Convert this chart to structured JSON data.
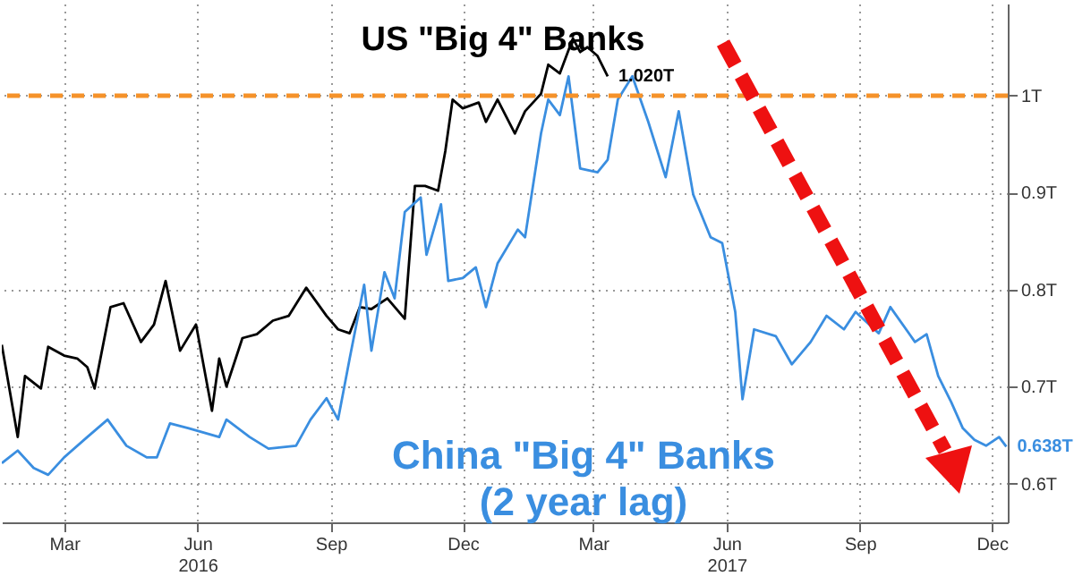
{
  "chart_data": {
    "type": "line",
    "xlim": [
      "2016-02-01",
      "2017-12-26"
    ],
    "xticks": [
      {
        "value": "2016-03-15",
        "label": "Mar"
      },
      {
        "value": "2016-06-15",
        "label": "Jun\n2016"
      },
      {
        "value": "2016-09-15",
        "label": "Sep"
      },
      {
        "value": "2016-12-15",
        "label": "Dec"
      },
      {
        "value": "2017-03-15",
        "label": "Mar"
      },
      {
        "value": "2017-06-15",
        "label": "Jun\n2017"
      },
      {
        "value": "2017-09-15",
        "label": "Sep"
      },
      {
        "value": "2017-12-15",
        "label": "Dec"
      }
    ],
    "ylim": [
      0.56,
      1.095
    ],
    "yticks": [
      {
        "value": 0.6,
        "label": "0.6T"
      },
      {
        "value": 0.7,
        "label": "0.7T"
      },
      {
        "value": 0.8,
        "label": "0.8T"
      },
      {
        "value": 0.9,
        "label": "0.9T"
      },
      {
        "value": 1,
        "label": "1T"
      }
    ],
    "grid": true,
    "ref_lines": [
      {
        "axis": "y",
        "value": 1,
        "color": "#f5922a",
        "line_style": "dashed"
      }
    ],
    "series": [
      {
        "name": "US \"Big 4\" Banks",
        "color": "#000000",
        "x": [
          "2016-02-01",
          "2016-02-12",
          "2016-02-17",
          "2016-02-28",
          "2016-03-04",
          "2016-03-15",
          "2016-03-24",
          "2016-03-31",
          "2016-04-05",
          "2016-04-16",
          "2016-04-25",
          "2016-05-07",
          "2016-05-16",
          "2016-05-24",
          "2016-06-03",
          "2016-06-14",
          "2016-06-25",
          "2016-06-30",
          "2016-07-05",
          "2016-07-16",
          "2016-07-26",
          "2016-08-06",
          "2016-08-17",
          "2016-08-29",
          "2016-09-12",
          "2016-09-20",
          "2016-09-28",
          "2016-10-05",
          "2016-10-13",
          "2016-10-24",
          "2016-11-05",
          "2016-11-12",
          "2016-11-19",
          "2016-11-28",
          "2016-12-03",
          "2016-12-08",
          "2016-12-15",
          "2016-12-26",
          "2016-12-31",
          "2017-01-08",
          "2017-01-20",
          "2017-01-27",
          "2017-02-07",
          "2017-02-12",
          "2017-02-20",
          "2017-03-01",
          "2017-03-06",
          "2017-03-11",
          "2017-03-18",
          "2017-03-25"
        ],
        "values": [
          0.743,
          0.648,
          0.711,
          0.698,
          0.741,
          0.732,
          0.729,
          0.72,
          0.698,
          0.782,
          0.786,
          0.746,
          0.764,
          0.809,
          0.737,
          0.764,
          0.675,
          0.729,
          0.7,
          0.75,
          0.754,
          0.768,
          0.773,
          0.802,
          0.773,
          0.759,
          0.755,
          0.782,
          0.78,
          0.791,
          0.77,
          0.907,
          0.907,
          0.902,
          0.943,
          0.996,
          0.987,
          0.993,
          0.973,
          0.996,
          0.961,
          0.984,
          1.002,
          1.032,
          1.023,
          1.059,
          1.045,
          1.05,
          1.041,
          1.02
        ],
        "value_labels": [
          null,
          null,
          null,
          null,
          null,
          null,
          null,
          null,
          null,
          null,
          null,
          null,
          null,
          null,
          null,
          null,
          null,
          null,
          null,
          null,
          null,
          null,
          null,
          null,
          null,
          null,
          null,
          null,
          null,
          null,
          null,
          null,
          null,
          null,
          null,
          null,
          null,
          null,
          null,
          null,
          null,
          null,
          null,
          null,
          null,
          null,
          null,
          null,
          null,
          "1.020T"
        ]
      },
      {
        "name": "China \"Big 4\" Banks\n(2 year lag)",
        "color": "#3a8ee0",
        "x": [
          "2016-02-01",
          "2016-02-12",
          "2016-02-23",
          "2016-03-04",
          "2016-03-15",
          "2016-03-31",
          "2016-04-14",
          "2016-04-27",
          "2016-05-11",
          "2016-05-18",
          "2016-05-27",
          "2016-06-09",
          "2016-06-30",
          "2016-07-05",
          "2016-07-21",
          "2016-08-03",
          "2016-08-22",
          "2016-09-01",
          "2016-09-12",
          "2016-09-20",
          "2016-09-28",
          "2016-10-08",
          "2016-10-13",
          "2016-10-22",
          "2016-10-29",
          "2016-11-05",
          "2016-11-16",
          "2016-11-20",
          "2016-11-30",
          "2016-12-05",
          "2016-12-15",
          "2016-12-24",
          "2016-12-31",
          "2017-01-08",
          "2017-01-22",
          "2017-01-27",
          "2017-02-07",
          "2017-02-12",
          "2017-02-20",
          "2017-02-26",
          "2017-03-06",
          "2017-03-18",
          "2017-03-25",
          "2017-04-01",
          "2017-04-11",
          "2017-04-22",
          "2017-05-04",
          "2017-05-13",
          "2017-05-23",
          "2017-06-04",
          "2017-06-12",
          "2017-06-21",
          "2017-06-26",
          "2017-07-04",
          "2017-07-19",
          "2017-07-30",
          "2017-08-12",
          "2017-08-23",
          "2017-09-04",
          "2017-09-12",
          "2017-09-28",
          "2017-10-06",
          "2017-10-23",
          "2017-10-31",
          "2017-11-08",
          "2017-11-17",
          "2017-11-25",
          "2017-12-03",
          "2017-12-11",
          "2017-12-20",
          "2017-12-25"
        ],
        "values": [
          0.621,
          0.634,
          0.616,
          0.609,
          0.627,
          0.648,
          0.666,
          0.639,
          0.627,
          0.627,
          0.662,
          0.657,
          0.648,
          0.666,
          0.648,
          0.636,
          0.639,
          0.666,
          0.688,
          0.666,
          0.729,
          0.805,
          0.737,
          0.818,
          0.791,
          0.88,
          0.895,
          0.836,
          0.888,
          0.809,
          0.812,
          0.823,
          0.782,
          0.827,
          0.862,
          0.854,
          0.961,
          0.996,
          0.98,
          1.02,
          0.925,
          0.921,
          0.934,
          0.996,
          1.02,
          0.973,
          0.916,
          0.984,
          0.898,
          0.854,
          0.848,
          0.777,
          0.687,
          0.759,
          0.752,
          0.723,
          0.746,
          0.773,
          0.759,
          0.777,
          0.755,
          0.782,
          0.746,
          0.754,
          0.711,
          0.684,
          0.657,
          0.645,
          0.639,
          0.648,
          0.638
        ],
        "value_labels": [
          null,
          null,
          null,
          null,
          null,
          null,
          null,
          null,
          null,
          null,
          null,
          null,
          null,
          null,
          null,
          null,
          null,
          null,
          null,
          null,
          null,
          null,
          null,
          null,
          null,
          null,
          null,
          null,
          null,
          null,
          null,
          null,
          null,
          null,
          null,
          null,
          null,
          null,
          null,
          null,
          null,
          null,
          null,
          null,
          null,
          null,
          null,
          null,
          null,
          null,
          null,
          null,
          null,
          null,
          null,
          null,
          null,
          null,
          null,
          null,
          null,
          null,
          null,
          null,
          null,
          null,
          null,
          null,
          null,
          null,
          "0.638T"
        ]
      }
    ]
  }
}
